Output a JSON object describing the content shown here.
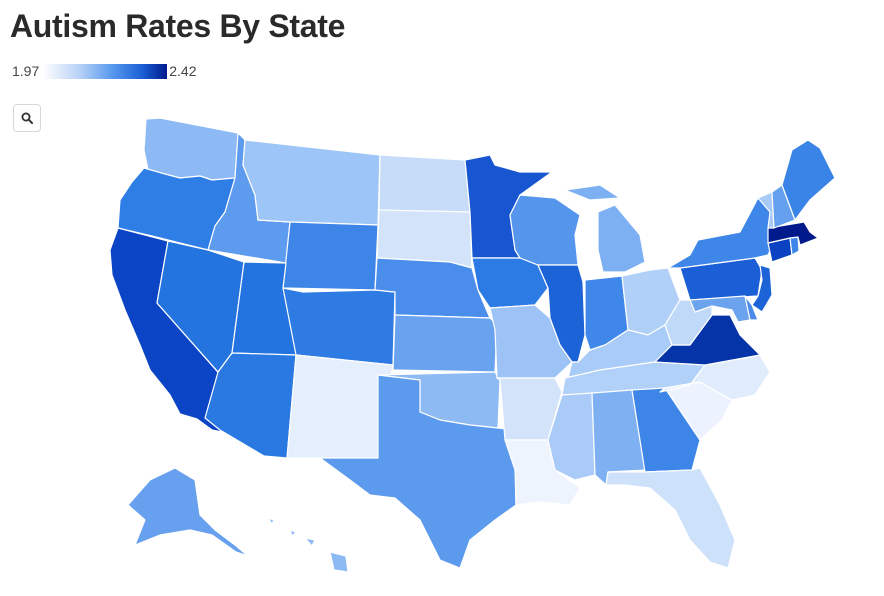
{
  "header": {
    "title": "Autism Rates By State"
  },
  "legend": {
    "min_label": "1.97",
    "max_label": "2.42"
  },
  "toolbar": {
    "search_icon": "search-icon"
  },
  "map": {
    "scale_min": 1.97,
    "scale_max": 2.42,
    "states": [
      {
        "id": "WA",
        "color": "#8dbaf5"
      },
      {
        "id": "OR",
        "color": "#2e7ee6"
      },
      {
        "id": "CA",
        "color": "#0b44c4"
      },
      {
        "id": "ID",
        "color": "#5c9bee"
      },
      {
        "id": "NV",
        "color": "#2474e0"
      },
      {
        "id": "MT",
        "color": "#9ec5f7"
      },
      {
        "id": "WY",
        "color": "#3d86e8"
      },
      {
        "id": "UT",
        "color": "#2374e0"
      },
      {
        "id": "AZ",
        "color": "#2a78e2"
      },
      {
        "id": "CO",
        "color": "#2e7be4"
      },
      {
        "id": "NM",
        "color": "#e4eefc"
      },
      {
        "id": "ND",
        "color": "#c6dcf9"
      },
      {
        "id": "SD",
        "color": "#d3e4fa"
      },
      {
        "id": "NE",
        "color": "#4a8deb"
      },
      {
        "id": "KS",
        "color": "#69a2ee"
      },
      {
        "id": "OK",
        "color": "#8ebaf4"
      },
      {
        "id": "TX",
        "color": "#5c9aed"
      },
      {
        "id": "MN",
        "color": "#1756d0"
      },
      {
        "id": "IA",
        "color": "#2c7ae4"
      },
      {
        "id": "MO",
        "color": "#9dc3f6"
      },
      {
        "id": "AR",
        "color": "#d3e4fa"
      },
      {
        "id": "LA",
        "color": "#eef4fe"
      },
      {
        "id": "WI",
        "color": "#5596ec"
      },
      {
        "id": "IL",
        "color": "#1c63d8"
      },
      {
        "id": "MI",
        "color": "#7cb0f2"
      },
      {
        "id": "IN",
        "color": "#3f87e9"
      },
      {
        "id": "OH",
        "color": "#b0d0f8"
      },
      {
        "id": "KY",
        "color": "#a9cbf7"
      },
      {
        "id": "TN",
        "color": "#b2d1f8"
      },
      {
        "id": "MS",
        "color": "#aacbf7"
      },
      {
        "id": "AL",
        "color": "#7fb1f2"
      },
      {
        "id": "GA",
        "color": "#3d86e8"
      },
      {
        "id": "FL",
        "color": "#cde1fa"
      },
      {
        "id": "SC",
        "color": "#edf3fe"
      },
      {
        "id": "NC",
        "color": "#e0ecfc"
      },
      {
        "id": "VA",
        "color": "#0533a8"
      },
      {
        "id": "WV",
        "color": "#c0d9f9"
      },
      {
        "id": "PA",
        "color": "#1b5fd6"
      },
      {
        "id": "NY",
        "color": "#3e86e8"
      },
      {
        "id": "NJ",
        "color": "#1c63d8"
      },
      {
        "id": "MD",
        "color": "#6ba3ef"
      },
      {
        "id": "DE",
        "color": "#4b8ceb"
      },
      {
        "id": "CT",
        "color": "#0a42c2"
      },
      {
        "id": "RI",
        "color": "#3e86e8"
      },
      {
        "id": "MA",
        "color": "#001a8c"
      },
      {
        "id": "VT",
        "color": "#a7caf7"
      },
      {
        "id": "NH",
        "color": "#64a0ee"
      },
      {
        "id": "ME",
        "color": "#3b84e7"
      },
      {
        "id": "AK",
        "color": "#66a0ee"
      },
      {
        "id": "HI",
        "color": "#8ebaf4"
      }
    ]
  }
}
